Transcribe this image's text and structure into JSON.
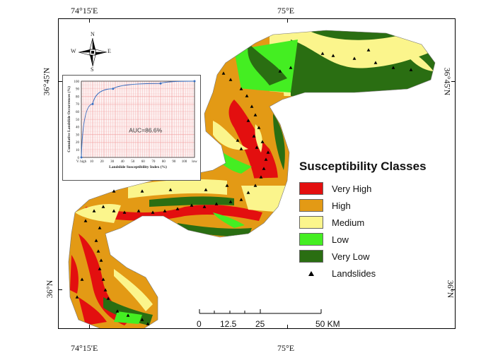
{
  "coordinates": {
    "top_left": "74°15'E",
    "top_right": "75°E",
    "bottom_left": "74°15'E",
    "bottom_right": "75°E",
    "left_top": "36°45'N",
    "left_bottom": "36°N",
    "right_top": "36°45'N",
    "right_bottom": "36°N"
  },
  "north_arrow": {
    "n": "N",
    "s": "S",
    "e": "E",
    "w": "W",
    "icon": "compass-rose-icon"
  },
  "legend": {
    "title": "Susceptibility Classes",
    "items": [
      {
        "label": "Very High",
        "color": "#e30f0f"
      },
      {
        "label": "High",
        "color": "#e39a15"
      },
      {
        "label": "Medium",
        "color": "#fbf58c"
      },
      {
        "label": "Low",
        "color": "#44ee22"
      },
      {
        "label": "Very Low",
        "color": "#2a6e12"
      }
    ],
    "landslides_label": "Landslides"
  },
  "scale": {
    "labels": [
      "0",
      "12.5",
      "25",
      "50 KM"
    ]
  },
  "chart_data": {
    "type": "line",
    "x": [
      0,
      10,
      28,
      70,
      100
    ],
    "y": [
      0,
      70,
      90,
      97,
      100
    ],
    "xlabel": "Landslide Susceptibility Index (%)",
    "ylabel": "Cumulative Landslide Occurrences (%)",
    "xlim": [
      0,
      100
    ],
    "ylim": [
      0,
      100
    ],
    "xticks": [
      "V. high",
      "10",
      "20",
      "30",
      "40",
      "50",
      "60",
      "70",
      "80",
      "90",
      "100",
      "low"
    ],
    "yticks": [
      "0",
      "10",
      "20",
      "30",
      "40",
      "50",
      "60",
      "70",
      "80",
      "90",
      "100"
    ],
    "annotation": "AUC=86.6%",
    "grid": true,
    "line_color": "#3a6fc0"
  }
}
